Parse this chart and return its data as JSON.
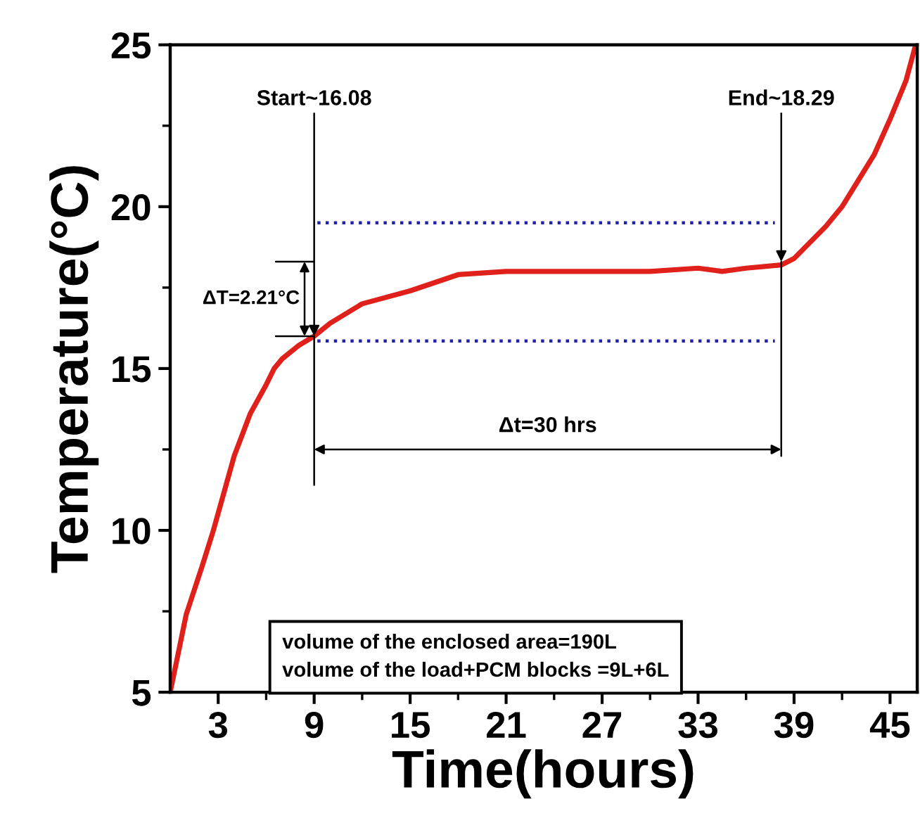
{
  "chart_data": {
    "type": "line",
    "xlabel": "Time(hours)",
    "ylabel": "Temperature(°C)",
    "xlim": [
      0,
      46.7
    ],
    "ylim": [
      5,
      25
    ],
    "xticks": [
      3,
      {
        "value": 6,
        "label": null
      },
      9,
      {
        "value": 12,
        "label": null
      },
      15,
      {
        "value": 18,
        "label": null
      },
      21,
      {
        "value": 24,
        "label": null
      },
      27,
      {
        "value": 30,
        "label": null
      },
      33,
      {
        "value": 36,
        "label": null
      },
      39,
      {
        "value": 42,
        "label": null
      },
      45
    ],
    "yticks": [
      5,
      {
        "value": 7.5,
        "label": null
      },
      10,
      {
        "value": 12.5,
        "label": null
      },
      15,
      {
        "value": 17.5,
        "label": null
      },
      20,
      {
        "value": 22.5,
        "label": null
      },
      25
    ],
    "grid": false,
    "legend": false,
    "marker": "none",
    "series": [
      {
        "color": "#e0201b",
        "line_style": "solid",
        "x": [
          0,
          1,
          2,
          2.7,
          4,
          5,
          6,
          6.5,
          7,
          8,
          9,
          10,
          12,
          15,
          18,
          21,
          24,
          27,
          30,
          33,
          34.5,
          36,
          38.2,
          39,
          40,
          41,
          42,
          43,
          44,
          45,
          46,
          46.6
        ],
        "values": [
          5,
          7.4,
          8.9,
          10,
          12.3,
          13.6,
          14.5,
          15,
          15.3,
          15.7,
          16.0,
          16.4,
          17.0,
          17.4,
          17.9,
          18.0,
          18.0,
          18.0,
          18.0,
          18.1,
          18.0,
          18.1,
          18.2,
          18.4,
          18.9,
          19.4,
          20.0,
          20.8,
          21.6,
          22.7,
          23.9,
          25
        ]
      },
      {
        "color": "#2222aa",
        "line_style": "dotted",
        "x": [
          9.2,
          37.8
        ],
        "values": [
          19.5,
          19.5
        ]
      },
      {
        "color": "#2222aa",
        "line_style": "dotted",
        "x": [
          9.2,
          37.8
        ],
        "values": [
          15.85,
          15.85
        ]
      }
    ],
    "annotations": [
      {
        "text": "Start~16.08",
        "x": 9,
        "y": 16.0
      },
      {
        "text": "End~18.29",
        "x": 38.2,
        "y": 18.3
      },
      "ΔT=2.21°C",
      "Δt=30 hrs",
      "volume of the enclosed area=190L\nvolume of the load+PCM blocks =9L+6L"
    ]
  }
}
